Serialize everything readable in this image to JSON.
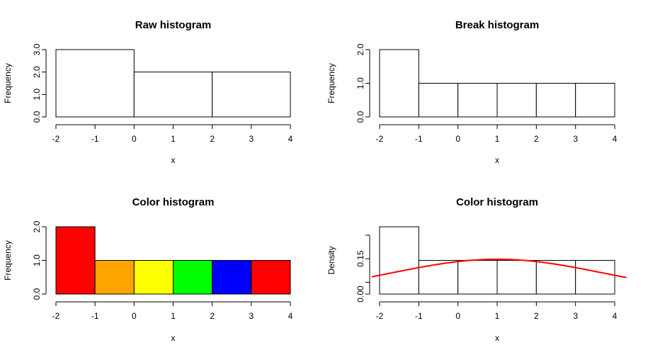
{
  "chart_data": [
    {
      "type": "bar",
      "title": "Raw histogram",
      "xlabel": "x",
      "ylabel": "Frequency",
      "bins": [
        [
          -2,
          0
        ],
        [
          0,
          2
        ],
        [
          2,
          4
        ]
      ],
      "values": [
        3,
        2,
        2
      ],
      "fill": [
        "#ffffff",
        "#ffffff",
        "#ffffff"
      ],
      "xlim": [
        -2,
        4
      ],
      "xticks": [
        "-2",
        "-1",
        "0",
        "1",
        "2",
        "3",
        "4"
      ],
      "ylim": [
        0,
        3
      ],
      "yticks": [
        "0.0",
        "1.0",
        "2.0",
        "3.0"
      ],
      "ytick_values": [
        0,
        1,
        2,
        3
      ]
    },
    {
      "type": "bar",
      "title": "Break histogram",
      "xlabel": "x",
      "ylabel": "Frequency",
      "bins": [
        [
          -2,
          -1
        ],
        [
          -1,
          0
        ],
        [
          0,
          1
        ],
        [
          1,
          2
        ],
        [
          2,
          3
        ],
        [
          3,
          4
        ]
      ],
      "values": [
        2,
        1,
        1,
        1,
        1,
        1
      ],
      "fill": [
        "#ffffff",
        "#ffffff",
        "#ffffff",
        "#ffffff",
        "#ffffff",
        "#ffffff"
      ],
      "xlim": [
        -2,
        4
      ],
      "xticks": [
        "-2",
        "-1",
        "0",
        "1",
        "2",
        "3",
        "4"
      ],
      "ylim": [
        0,
        2
      ],
      "yticks": [
        "0.0",
        "1.0",
        "2.0"
      ],
      "ytick_values": [
        0,
        1,
        2
      ]
    },
    {
      "type": "bar",
      "title": "Color histogram",
      "xlabel": "x",
      "ylabel": "Frequency",
      "bins": [
        [
          -2,
          -1
        ],
        [
          -1,
          0
        ],
        [
          0,
          1
        ],
        [
          1,
          2
        ],
        [
          2,
          3
        ],
        [
          3,
          4
        ]
      ],
      "values": [
        2,
        1,
        1,
        1,
        1,
        1
      ],
      "fill": [
        "#ff0000",
        "#ffa500",
        "#ffff00",
        "#00ff00",
        "#0000ff",
        "#ff0000"
      ],
      "xlim": [
        -2,
        4
      ],
      "xticks": [
        "-2",
        "-1",
        "0",
        "1",
        "2",
        "3",
        "4"
      ],
      "ylim": [
        0,
        2
      ],
      "yticks": [
        "0.0",
        "1.0",
        "2.0"
      ],
      "ytick_values": [
        0,
        1,
        2
      ]
    },
    {
      "type": "bar",
      "title": "Color histogram",
      "xlabel": "x",
      "ylabel": "Density",
      "bins": [
        [
          -2,
          -1
        ],
        [
          -1,
          0
        ],
        [
          0,
          1
        ],
        [
          1,
          2
        ],
        [
          2,
          3
        ],
        [
          3,
          4
        ]
      ],
      "values": [
        0.2857,
        0.1429,
        0.1429,
        0.1429,
        0.1429,
        0.1429
      ],
      "fill": [
        "#ffffff",
        "#ffffff",
        "#ffffff",
        "#ffffff",
        "#ffffff",
        "#ffffff"
      ],
      "xlim": [
        -2,
        4
      ],
      "xticks": [
        "-2",
        "-1",
        "0",
        "1",
        "2",
        "3",
        "4"
      ],
      "ylim": [
        0,
        0.2857
      ],
      "yticks": [
        "0.00",
        "",
        "0.15",
        ""
      ],
      "ytick_values": [
        0,
        0.05,
        0.15,
        0.25
      ],
      "curve": {
        "color": "#ff0000",
        "mean": 1,
        "sd": 2.7,
        "x_range": [
          -2.2,
          4.3
        ]
      }
    }
  ]
}
